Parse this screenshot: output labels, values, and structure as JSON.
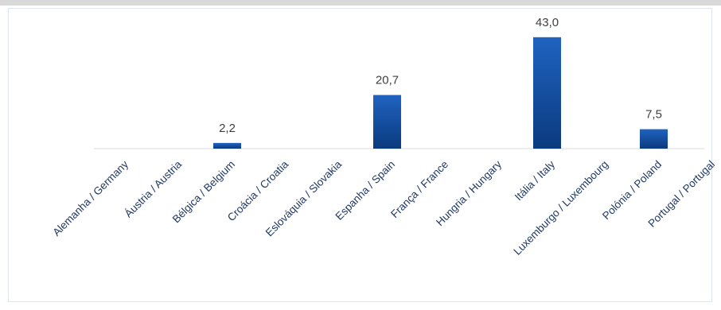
{
  "chart_data": {
    "type": "bar",
    "categories": [
      "Alemanha / Germany",
      "Áustria / Austria",
      "Bélgica / Belgium",
      "Croácia / Croatia",
      "Eslováquia / Slovakia",
      "Espanha / Spain",
      "França / France",
      "Hungria / Hungary",
      "Itália / Italy",
      "Luxemburgo / Luxembourg",
      "Polónia / Poland",
      "Portugal / Portugal"
    ],
    "values": [
      null,
      null,
      2.2,
      null,
      null,
      20.7,
      null,
      null,
      43.0,
      null,
      7.5,
      null
    ],
    "value_labels": [
      null,
      null,
      "2,2",
      null,
      null,
      "20,7",
      null,
      null,
      "43,0",
      null,
      "7,5",
      null
    ],
    "color": "#0f4a9a",
    "ylim": [
      0,
      50
    ]
  }
}
